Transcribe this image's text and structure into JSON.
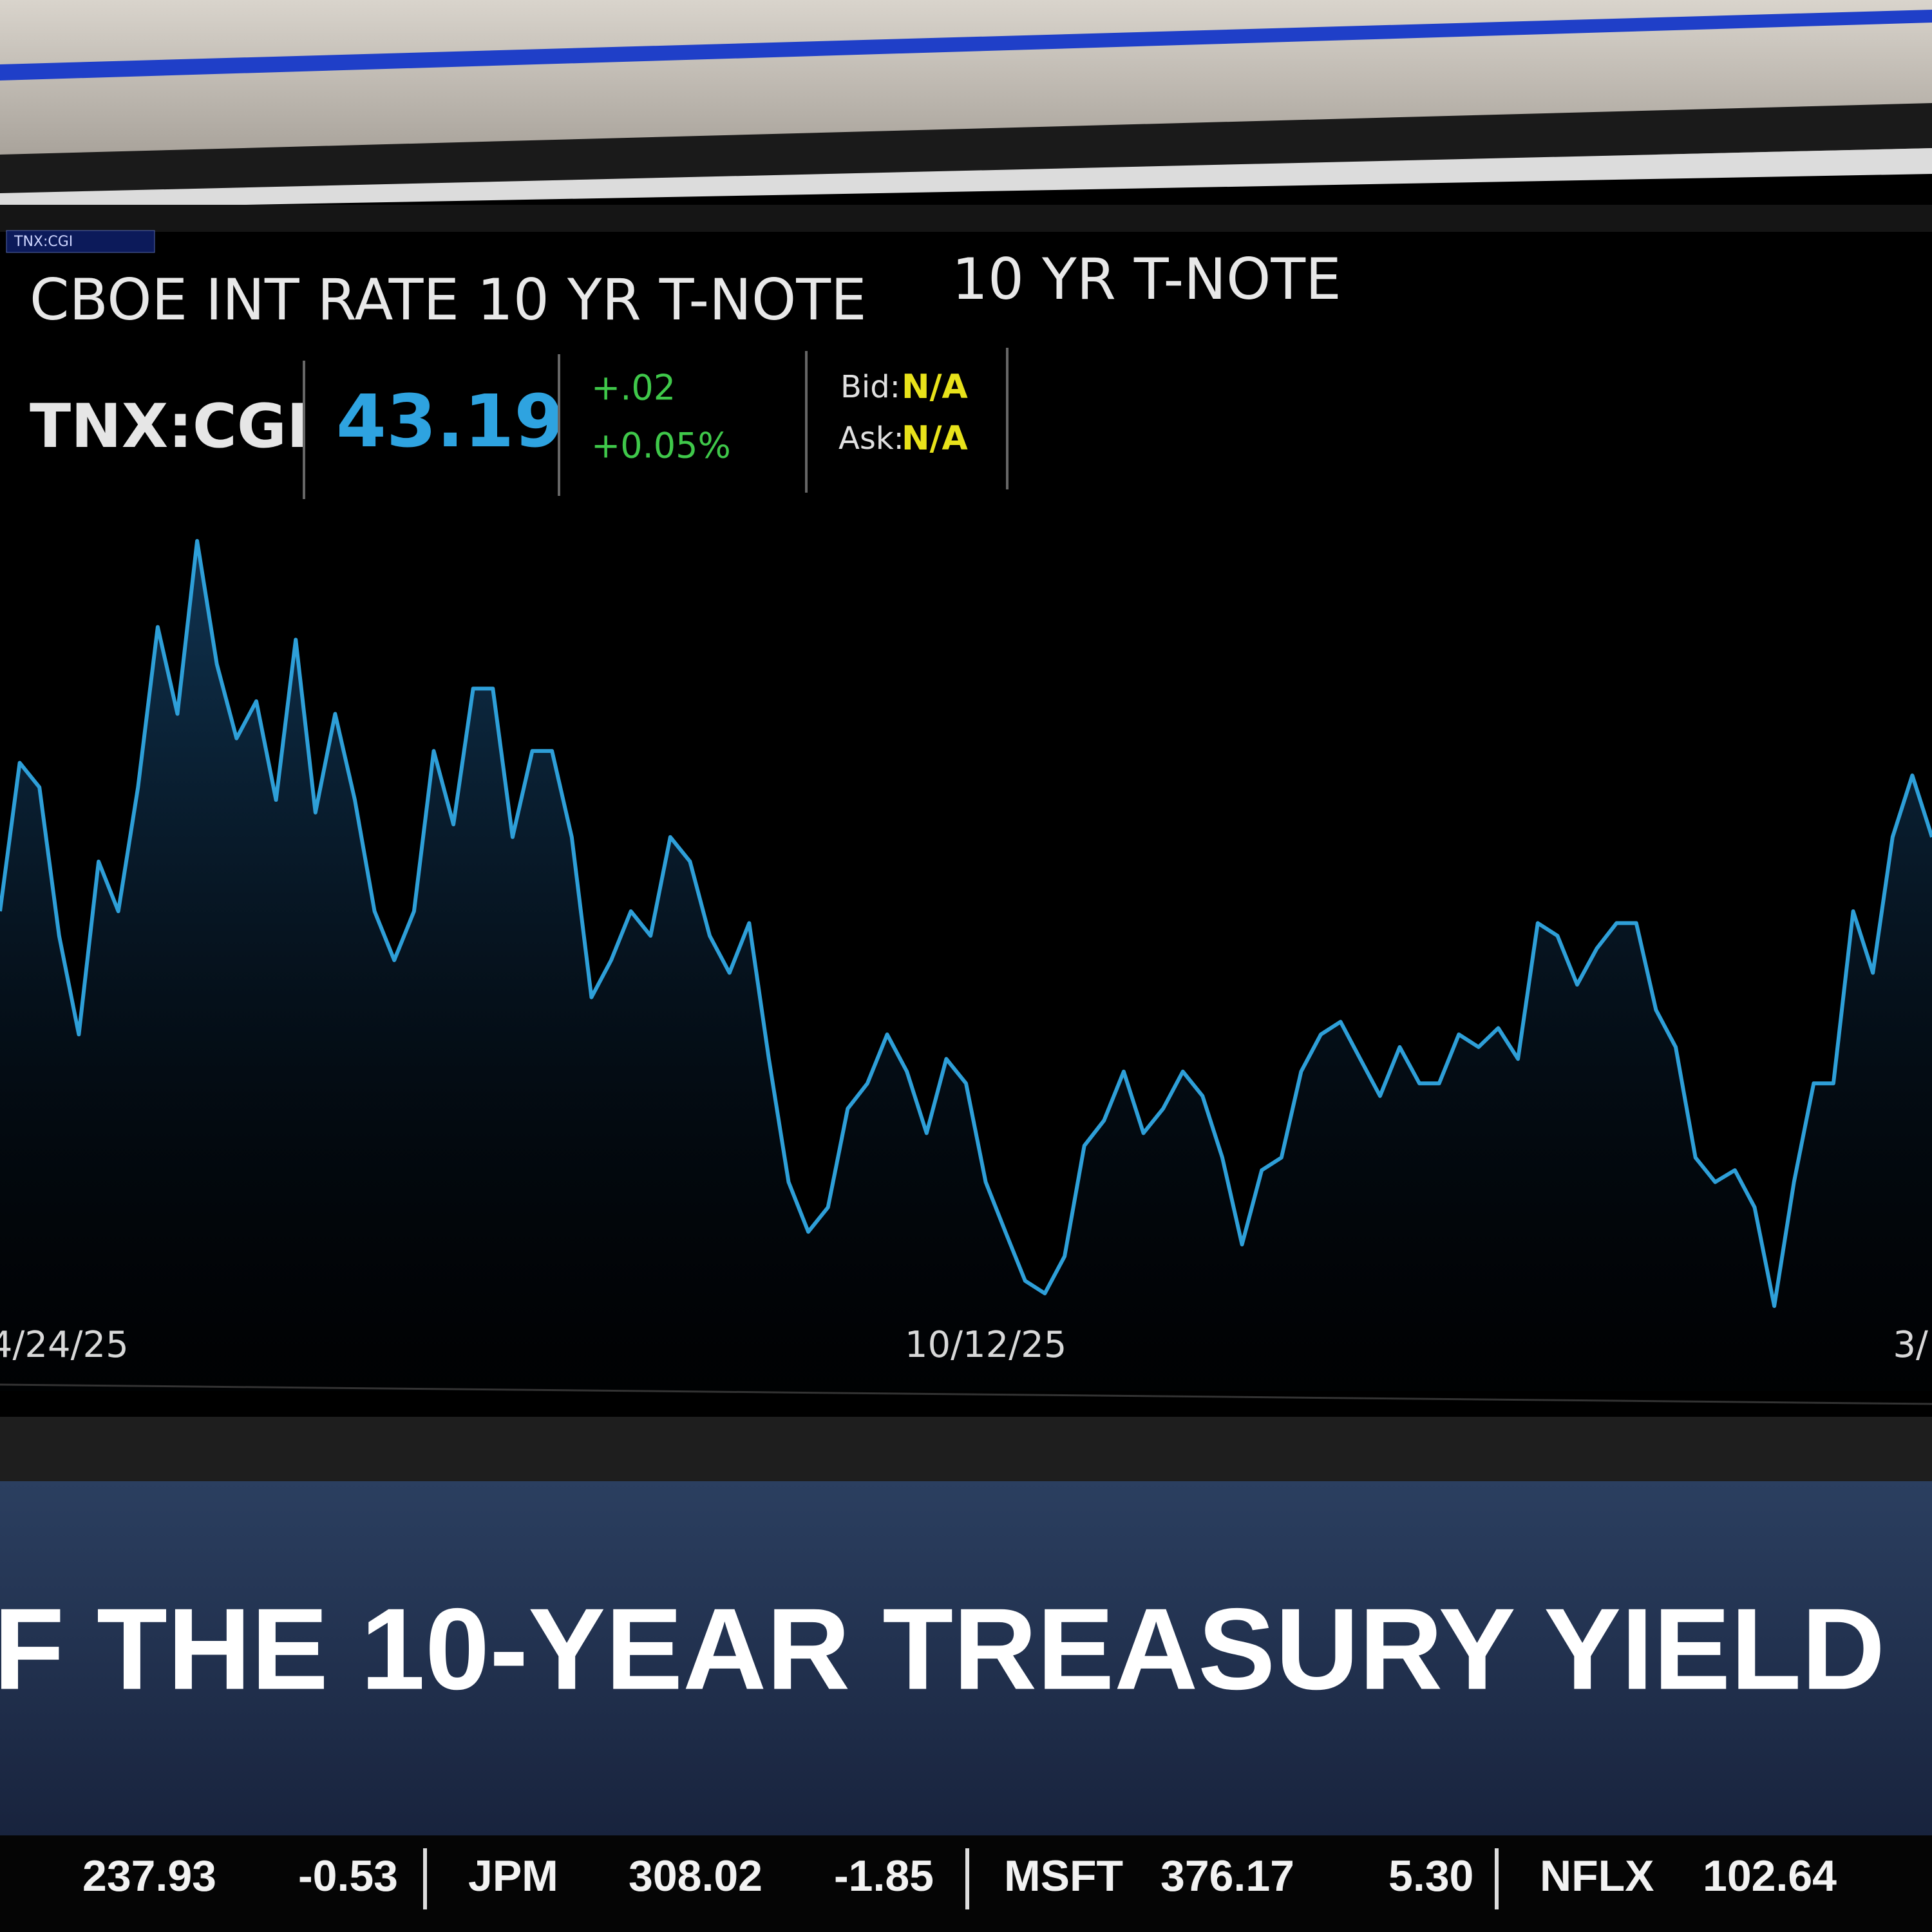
{
  "toolbar": {
    "symbol_input": "TNX:CGI"
  },
  "header": {
    "title": "CBOE INT RATE 10 YR T-NOTE",
    "subtitle": "10 YR T-NOTE",
    "symbol": "TNX:CGI",
    "last": "43.19",
    "change": "+.02",
    "change_pct": "+0.05%",
    "bid_label": "Bid:",
    "bid": "N/A",
    "ask_label": "Ask:",
    "ask": "N/A"
  },
  "chart_data": {
    "type": "line",
    "color": "#2e9fd8",
    "categories": [
      null,
      null,
      null,
      "4/24/25",
      null,
      null,
      null,
      null,
      null,
      null,
      null,
      null,
      null,
      null,
      null,
      null,
      null,
      null,
      null,
      null,
      null,
      null,
      null,
      null,
      null,
      null,
      null,
      null,
      null,
      null,
      null,
      null,
      null,
      null,
      null,
      null,
      null,
      null,
      null,
      null,
      null,
      null,
      null,
      null,
      null,
      null,
      null,
      null,
      null,
      null,
      "10/12/25",
      null,
      null,
      null,
      null,
      null,
      null,
      null,
      null,
      null,
      null,
      null,
      null,
      null,
      null,
      null,
      null,
      null,
      null,
      null,
      null,
      null,
      null,
      null,
      null,
      null,
      null,
      null,
      null,
      null,
      null,
      null,
      null,
      null,
      null,
      null,
      null,
      null,
      null,
      null,
      null,
      null,
      null,
      null,
      null,
      null,
      null,
      "3/",
      null
    ],
    "values": [
      42.26,
      44.14,
      43.83,
      41.95,
      40.7,
      42.89,
      42.26,
      43.83,
      45.86,
      44.76,
      46.95,
      45.39,
      44.45,
      44.92,
      43.67,
      45.7,
      43.51,
      44.76,
      43.67,
      42.26,
      41.64,
      42.26,
      44.29,
      43.36,
      45.08,
      45.08,
      43.2,
      44.29,
      44.29,
      43.2,
      41.17,
      41.64,
      42.26,
      41.95,
      43.2,
      42.89,
      41.95,
      41.48,
      42.11,
      40.39,
      38.83,
      38.2,
      38.51,
      39.76,
      40.08,
      40.7,
      40.23,
      39.45,
      40.39,
      40.08,
      38.83,
      38.2,
      37.58,
      37.42,
      37.89,
      39.29,
      39.61,
      40.23,
      39.45,
      39.76,
      40.23,
      39.92,
      39.14,
      38.04,
      38.98,
      39.14,
      40.23,
      40.7,
      40.86,
      40.39,
      39.92,
      40.54,
      40.08,
      40.08,
      40.7,
      40.54,
      40.78,
      40.39,
      42.11,
      41.95,
      41.33,
      41.79,
      42.11,
      42.11,
      41.01,
      40.54,
      39.14,
      38.83,
      38.98,
      38.51,
      37.26,
      38.83,
      40.08,
      40.08,
      42.26,
      41.48,
      43.2,
      43.98,
      43.2
    ]
  },
  "banner": {
    "headline": "F THE 10-YEAR TREASURY YIELD"
  },
  "ticker": [
    {
      "price": "237.93",
      "change": "-0.53",
      "color": "#e8323c"
    },
    {
      "symbol": "JPM",
      "price": "308.02",
      "change": "-1.85",
      "color": "#e8323c"
    },
    {
      "symbol": "MSFT",
      "price": "376.17",
      "change": "5.30",
      "color": "#6fd23a"
    },
    {
      "symbol": "NFLX",
      "price": "102.64"
    }
  ]
}
